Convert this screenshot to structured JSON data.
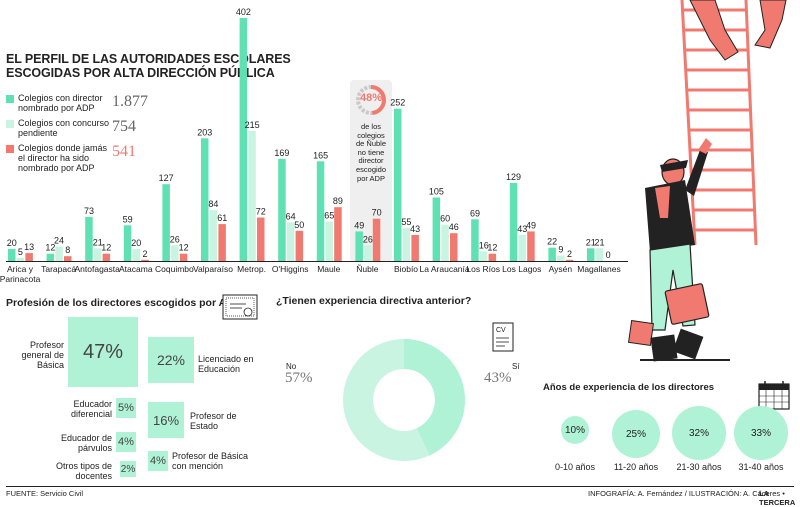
{
  "title": {
    "line1": "EL PERFIL DE LAS AUTORIDADES ESCOLARES",
    "line2": "ESCOGIDAS POR ALTA DIRECCIÓN PÚBLICA"
  },
  "legend": [
    {
      "label": "Colegios con director nombrado por ADP",
      "total": "1.877",
      "color": "#5fe1b4"
    },
    {
      "label": "Colegios con concurso pendiente",
      "total": "754",
      "color": "#c9f4e2"
    },
    {
      "label": "Colegios donde jamás el director ha sido nombrado por ADP",
      "total": "541",
      "color": "#f07a70"
    }
  ],
  "nuble_note": {
    "pct": "48%",
    "text": [
      "de los",
      "colegios",
      "de Ñuble",
      "no tiene",
      "director",
      "escogido",
      "por ADP"
    ]
  },
  "chart_data": {
    "type": "bar",
    "categories": [
      "Arica y Parinacota",
      "Tarapacá",
      "Antofagasta",
      "Atacama",
      "Coquimbo",
      "Valparaíso",
      "Metrop.",
      "O'Higgins",
      "Maule",
      "Ñuble",
      "Biobío",
      "La Araucanía",
      "Los Ríos",
      "Los Lagos",
      "Aysén",
      "Magallanes"
    ],
    "series": [
      {
        "name": "Colegios con director nombrado por ADP",
        "values": [
          20,
          12,
          73,
          59,
          127,
          203,
          402,
          169,
          165,
          49,
          252,
          105,
          69,
          129,
          22,
          21
        ],
        "color": "#5fe1b4"
      },
      {
        "name": "Colegios con concurso pendiente",
        "values": [
          5,
          24,
          21,
          20,
          26,
          84,
          215,
          64,
          65,
          26,
          55,
          60,
          16,
          43,
          9,
          21
        ],
        "color": "#c9f4e2"
      },
      {
        "name": "Colegios donde jamás el director ha sido nombrado por ADP",
        "values": [
          13,
          8,
          12,
          2,
          12,
          61,
          72,
          50,
          89,
          70,
          43,
          46,
          12,
          49,
          2,
          0
        ],
        "color": "#f07a70"
      }
    ]
  },
  "profession": {
    "title": "Profesión de los directores escogidos por ADP",
    "items": [
      {
        "label": "Profesor general de Básica",
        "pct": "47%"
      },
      {
        "label": "Licenciado en Educación",
        "pct": "22%"
      },
      {
        "label": "Educador diferencial",
        "pct": "5%"
      },
      {
        "label": "Profesor de Estado",
        "pct": "16%"
      },
      {
        "label": "Educador de párvulos",
        "pct": "4%"
      },
      {
        "label": "Profesor de Básica con mención",
        "pct": "4%"
      },
      {
        "label": "Otros tipos de docentes",
        "pct": "2%"
      }
    ]
  },
  "experience": {
    "title": "¿Tienen experiencia directiva anterior?",
    "no_label": "No",
    "no_pct": "57%",
    "no_value": 57,
    "yes_label": "Sí",
    "yes_pct": "43%",
    "yes_value": 43,
    "cv_label": "CV"
  },
  "years": {
    "title": "Años de experiencia de los directores",
    "items": [
      {
        "label": "0-10 años",
        "pct": "10%",
        "value": 10
      },
      {
        "label": "11-20 años",
        "pct": "25%",
        "value": 25
      },
      {
        "label": "21-30 años",
        "pct": "32%",
        "value": 32
      },
      {
        "label": "31-40 años",
        "pct": "33%",
        "value": 33
      }
    ]
  },
  "footer": {
    "source": "FUENTE: Servicio Civil",
    "credits": "INFOGRAFÍA: A. Fernández / ILUSTRACIÓN: A. Cáceres •",
    "brand": "LA TERCERA"
  },
  "colors": {
    "green": "#5fe1b4",
    "light": "#c9f4e2",
    "red": "#f07a70",
    "mint": "#aff2d6"
  }
}
